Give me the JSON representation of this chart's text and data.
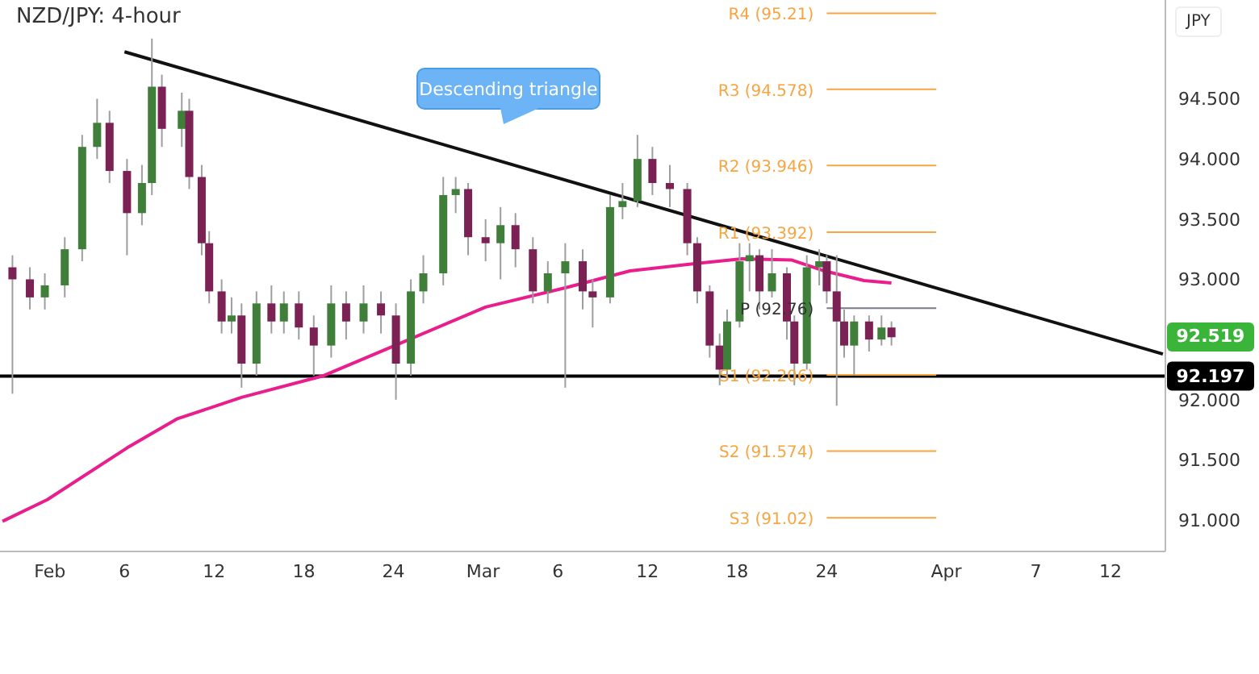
{
  "chart_data": {
    "type": "candlestick",
    "title": "NZD/JPY: 4-hour",
    "ylabel": "JPY",
    "xlim": [
      "--01-28T16:00",
      "--04-15T16:00"
    ],
    "xticks": [
      {
        "value": "--02-01",
        "label": "Feb"
      },
      {
        "value": "--02-06",
        "label": "6"
      },
      {
        "value": "--02-12",
        "label": "12"
      },
      {
        "value": "--02-18",
        "label": "18"
      },
      {
        "value": "--02-24",
        "label": "24"
      },
      {
        "value": "--03-01",
        "label": "Mar"
      },
      {
        "value": "--03-06",
        "label": "6"
      },
      {
        "value": "--03-12",
        "label": "12"
      },
      {
        "value": "--03-18",
        "label": "18"
      },
      {
        "value": "--03-24",
        "label": "24"
      },
      {
        "value": "--04-01",
        "label": "Apr"
      },
      {
        "value": "--04-07",
        "label": "7"
      },
      {
        "value": "--04-12",
        "label": "12"
      }
    ],
    "ylim": [
      90.74,
      95.32
    ],
    "yticks": [
      {
        "value": 91,
        "label": "91.000"
      },
      {
        "value": 91.5,
        "label": "91.500"
      },
      {
        "value": 92,
        "label": "92.000"
      },
      {
        "value": 93,
        "label": "93.000"
      },
      {
        "value": 93.5,
        "label": "93.500"
      },
      {
        "value": 94,
        "label": "94.000"
      },
      {
        "value": 94.5,
        "label": "94.500"
      }
    ],
    "series": [
      {
        "x": [
          "--01-29T12:00",
          "--01-30T16:00",
          "--01-31T16:00",
          "--02-02T00:00",
          "--02-03T04:00",
          "--02-04T04:00",
          "--02-05T00:00",
          "--02-06T04:00",
          "--02-07T04:00",
          "--02-07T20:00",
          "--02-08T12:00",
          "--02-09T20:00",
          "--02-10T08:00",
          "--02-11T04:00",
          "--02-11T16:00",
          "--02-12T12:00",
          "--02-13T04:00",
          "--02-13T20:00",
          "--02-14T20:00",
          "--02-15T20:00",
          "--02-16T16:00",
          "--02-17T16:00",
          "--02-18T16:00",
          "--02-19T20:00",
          "--02-20T20:00",
          "--02-22T00:00",
          "--02-23T04:00",
          "--02-24T04:00",
          "--02-25T04:00",
          "--02-26T00:00",
          "--02-27T08:00",
          "--02-28T04:00",
          "--02-29T00:00",
          "--03-01T04:00",
          "--03-02T04:00",
          "--03-03T04:00",
          "--03-04T08:00",
          "--03-05T08:00",
          "--03-06T12:00",
          "--03-07T16:00",
          "--03-08T08:00",
          "--03-09T12:00",
          "--03-10T08:00",
          "--03-11T08:00",
          "--03-12T08:00",
          "--03-13T12:00",
          "--03-14T16:00",
          "--03-15T08:00",
          "--03-16T04:00",
          "--03-16T20:00",
          "--03-17T08:00",
          "--03-18T04:00",
          "--03-18T20:00",
          "--03-19T12:00",
          "--03-20T08:00",
          "--03-21T08:00",
          "--03-21T20:00",
          "--03-22T16:00",
          "--03-23T12:00",
          "--03-24T00:00",
          "--03-24T16:00",
          "--03-25T04:00",
          "--03-25T20:00",
          "--03-26T20:00",
          "--03-27T16:00",
          "--03-28T08:00"
        ],
        "ohlc": [
          [
            93.1,
            93.2,
            92.05,
            93.0
          ],
          [
            93.0,
            93.1,
            92.75,
            92.85
          ],
          [
            92.85,
            93.05,
            92.75,
            92.95
          ],
          [
            92.95,
            93.35,
            92.85,
            93.25
          ],
          [
            93.25,
            94.2,
            93.15,
            94.1
          ],
          [
            94.1,
            94.5,
            94.0,
            94.3
          ],
          [
            94.3,
            94.4,
            93.8,
            93.9
          ],
          [
            93.9,
            94.0,
            93.2,
            93.55
          ],
          [
            93.55,
            93.95,
            93.45,
            93.8
          ],
          [
            93.8,
            95.0,
            93.7,
            94.6
          ],
          [
            94.6,
            94.7,
            94.1,
            94.25
          ],
          [
            94.25,
            94.55,
            94.1,
            94.4
          ],
          [
            94.4,
            94.5,
            93.75,
            93.85
          ],
          [
            93.85,
            93.95,
            93.2,
            93.3
          ],
          [
            93.3,
            93.4,
            92.8,
            92.9
          ],
          [
            92.9,
            93.0,
            92.55,
            92.65
          ],
          [
            92.65,
            92.85,
            92.55,
            92.7
          ],
          [
            92.7,
            92.8,
            92.1,
            92.3
          ],
          [
            92.3,
            92.9,
            92.2,
            92.8
          ],
          [
            92.8,
            92.95,
            92.55,
            92.65
          ],
          [
            92.65,
            92.9,
            92.55,
            92.8
          ],
          [
            92.8,
            92.9,
            92.5,
            92.6
          ],
          [
            92.6,
            92.7,
            92.2,
            92.45
          ],
          [
            92.45,
            92.95,
            92.35,
            92.8
          ],
          [
            92.8,
            92.9,
            92.5,
            92.65
          ],
          [
            92.65,
            92.95,
            92.55,
            92.8
          ],
          [
            92.8,
            92.9,
            92.55,
            92.7
          ],
          [
            92.7,
            92.8,
            92.0,
            92.3
          ],
          [
            92.3,
            93.0,
            92.2,
            92.9
          ],
          [
            92.9,
            93.2,
            92.8,
            93.05
          ],
          [
            93.05,
            93.85,
            92.95,
            93.7
          ],
          [
            93.7,
            93.85,
            93.55,
            93.75
          ],
          [
            93.75,
            93.8,
            93.2,
            93.35
          ],
          [
            93.35,
            93.5,
            93.15,
            93.3
          ],
          [
            93.3,
            93.6,
            93.0,
            93.45
          ],
          [
            93.45,
            93.55,
            93.1,
            93.25
          ],
          [
            93.25,
            93.35,
            92.8,
            92.9
          ],
          [
            92.9,
            93.15,
            92.8,
            93.05
          ],
          [
            93.05,
            93.3,
            92.1,
            93.15
          ],
          [
            93.15,
            93.25,
            92.75,
            92.9
          ],
          [
            92.9,
            93.0,
            92.6,
            92.85
          ],
          [
            92.85,
            93.7,
            92.8,
            93.6
          ],
          [
            93.6,
            93.8,
            93.5,
            93.65
          ],
          [
            93.65,
            94.2,
            93.6,
            94.0
          ],
          [
            94.0,
            94.1,
            93.7,
            93.8
          ],
          [
            93.8,
            93.95,
            93.6,
            93.75
          ],
          [
            93.75,
            93.8,
            93.2,
            93.3
          ],
          [
            93.3,
            93.35,
            92.8,
            92.9
          ],
          [
            92.9,
            92.95,
            92.35,
            92.45
          ],
          [
            92.45,
            92.55,
            92.12,
            92.25
          ],
          [
            92.25,
            92.75,
            92.2,
            92.65
          ],
          [
            92.65,
            93.3,
            92.6,
            93.15
          ],
          [
            93.15,
            93.3,
            92.9,
            93.2
          ],
          [
            93.2,
            93.25,
            92.75,
            92.9
          ],
          [
            92.9,
            93.25,
            92.85,
            93.05
          ],
          [
            93.05,
            93.1,
            92.5,
            92.65
          ],
          [
            92.65,
            92.7,
            92.12,
            92.3
          ],
          [
            92.3,
            93.2,
            92.25,
            93.1
          ],
          [
            93.1,
            93.25,
            92.95,
            93.15
          ],
          [
            93.15,
            93.2,
            92.8,
            92.9
          ],
          [
            92.9,
            93.2,
            91.95,
            92.65
          ],
          [
            92.65,
            92.75,
            92.35,
            92.45
          ],
          [
            92.45,
            92.7,
            92.2,
            92.65
          ],
          [
            92.65,
            92.7,
            92.4,
            92.5
          ],
          [
            92.5,
            92.7,
            92.45,
            92.6
          ],
          [
            92.6,
            92.65,
            92.45,
            92.519
          ]
        ],
        "colors": [
          "#7b2153",
          "#7b2153",
          "#3f7f3a",
          "#3f7f3a",
          "#3f7f3a",
          "#3f7f3a",
          "#7b2153",
          "#7b2153",
          "#3f7f3a",
          "#3f7f3a",
          "#7b2153",
          "#3f7f3a",
          "#7b2153",
          "#7b2153",
          "#7b2153",
          "#7b2153",
          "#3f7f3a",
          "#7b2153",
          "#3f7f3a",
          "#7b2153",
          "#3f7f3a",
          "#7b2153",
          "#7b2153",
          "#3f7f3a",
          "#7b2153",
          "#3f7f3a",
          "#7b2153",
          "#7b2153",
          "#3f7f3a",
          "#3f7f3a",
          "#3f7f3a",
          "#3f7f3a",
          "#7b2153",
          "#7b2153",
          "#3f7f3a",
          "#7b2153",
          "#7b2153",
          "#3f7f3a",
          "#3f7f3a",
          "#7b2153",
          "#7b2153",
          "#3f7f3a",
          "#3f7f3a",
          "#3f7f3a",
          "#7b2153",
          "#7b2153",
          "#7b2153",
          "#7b2153",
          "#7b2153",
          "#7b2153",
          "#3f7f3a",
          "#3f7f3a",
          "#3f7f3a",
          "#7b2153",
          "#3f7f3a",
          "#7b2153",
          "#7b2153",
          "#3f7f3a",
          "#3f7f3a",
          "#7b2153",
          "#7b2153",
          "#7b2153",
          "#3f7f3a",
          "#7b2153",
          "#3f7f3a",
          "#7b2153"
        ]
      },
      {
        "type": "line",
        "color": "#e91e8c",
        "x": [
          "--01-28T20:00",
          "--01-31T20:00",
          "--02-06T04:00",
          "--02-09T12:00",
          "--02-13T20:00",
          "--02-19T08:00",
          "--02-24T16:00",
          "--03-01T04:00",
          "--03-06T12:00",
          "--03-10T20:00",
          "--03-15T04:00",
          "--03-18T08:00",
          "--03-21T16:00",
          "--03-23T20:00",
          "--03-26T12:00",
          "--03-28T08:00"
        ],
        "values": [
          90.99,
          91.17,
          91.6,
          91.84,
          92.02,
          92.2,
          92.48,
          92.77,
          92.93,
          93.07,
          93.13,
          93.17,
          93.16,
          93.07,
          92.99,
          92.97
        ]
      },
      {
        "type": "line",
        "color": "#111111",
        "x": [
          "--02-06T00:00",
          "--04-15T12:00"
        ],
        "values": [
          94.89,
          92.38
        ]
      },
      {
        "type": "line",
        "name": "R4 (95.21)",
        "color": "#f7a541",
        "x": [
          "--03-24",
          "--03-31T08:00"
        ],
        "values": [
          95.21,
          95.21
        ]
      },
      {
        "type": "line",
        "name": "R3 (94.578)",
        "color": "#f7a541",
        "x": [
          "--03-24",
          "--03-31T08:00"
        ],
        "values": [
          94.578,
          94.578
        ]
      },
      {
        "type": "line",
        "name": "R2 (93.946)",
        "color": "#f7a541",
        "x": [
          "--03-24",
          "--03-31T08:00"
        ],
        "values": [
          93.946,
          93.946
        ]
      },
      {
        "type": "line",
        "name": "R1 (93.392)",
        "color": "#f7a541",
        "x": [
          "--03-24",
          "--03-31T08:00"
        ],
        "values": [
          93.392,
          93.392
        ]
      },
      {
        "type": "line",
        "name": "P (92.76)",
        "color": "#787b86",
        "x": [
          "--03-24",
          "--03-31T08:00"
        ],
        "values": [
          92.76,
          92.76
        ]
      },
      {
        "type": "line",
        "name": "S1 (92.206)",
        "color": "#f7a541",
        "x": [
          "--03-24",
          "--03-31T08:00"
        ],
        "values": [
          92.206,
          92.206
        ]
      },
      {
        "type": "line",
        "name": "S2 (91.574)",
        "color": "#f7a541",
        "x": [
          "--03-24",
          "--03-31T08:00"
        ],
        "values": [
          91.574,
          91.574
        ]
      },
      {
        "type": "line",
        "name": "S3 (91.02)",
        "color": "#f7a541",
        "x": [
          "--03-24",
          "--03-31T08:00"
        ],
        "values": [
          91.02,
          91.02
        ]
      }
    ],
    "ref_lines": [
      {
        "axis": "y",
        "value": 92.197,
        "label": "92.197",
        "color": "#000000"
      }
    ],
    "annotations": [
      "Descending triangle",
      "92.519"
    ]
  }
}
